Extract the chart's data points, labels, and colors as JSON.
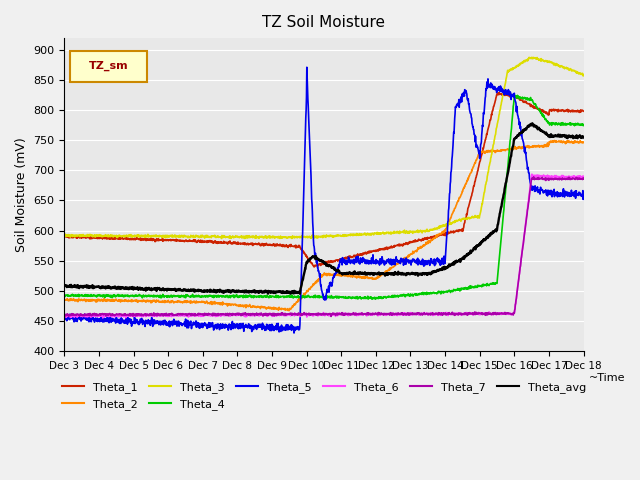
{
  "title": "TZ Soil Moisture",
  "xlabel": "~Time",
  "ylabel": "Soil Moisture (mV)",
  "ylim": [
    400,
    920
  ],
  "yticks": [
    400,
    450,
    500,
    550,
    600,
    650,
    700,
    750,
    800,
    850,
    900
  ],
  "x_labels": [
    "Dec 3",
    "Dec 4",
    "Dec 5",
    "Dec 6",
    "Dec 7",
    "Dec 8",
    "Dec 9",
    "Dec 10",
    "Dec 11",
    "Dec 12",
    "Dec 13",
    "Dec 14",
    "Dec 15",
    "Dec 16",
    "Dec 17",
    "Dec 18"
  ],
  "bg_color": "#e8e8e8",
  "legend_label": "TZ_sm",
  "colors": {
    "Theta_1": "#cc2200",
    "Theta_2": "#ff8800",
    "Theta_3": "#dddd00",
    "Theta_4": "#00cc00",
    "Theta_5": "#0000ee",
    "Theta_6": "#ff44ff",
    "Theta_7": "#aa00aa",
    "Theta_avg": "#000000"
  }
}
